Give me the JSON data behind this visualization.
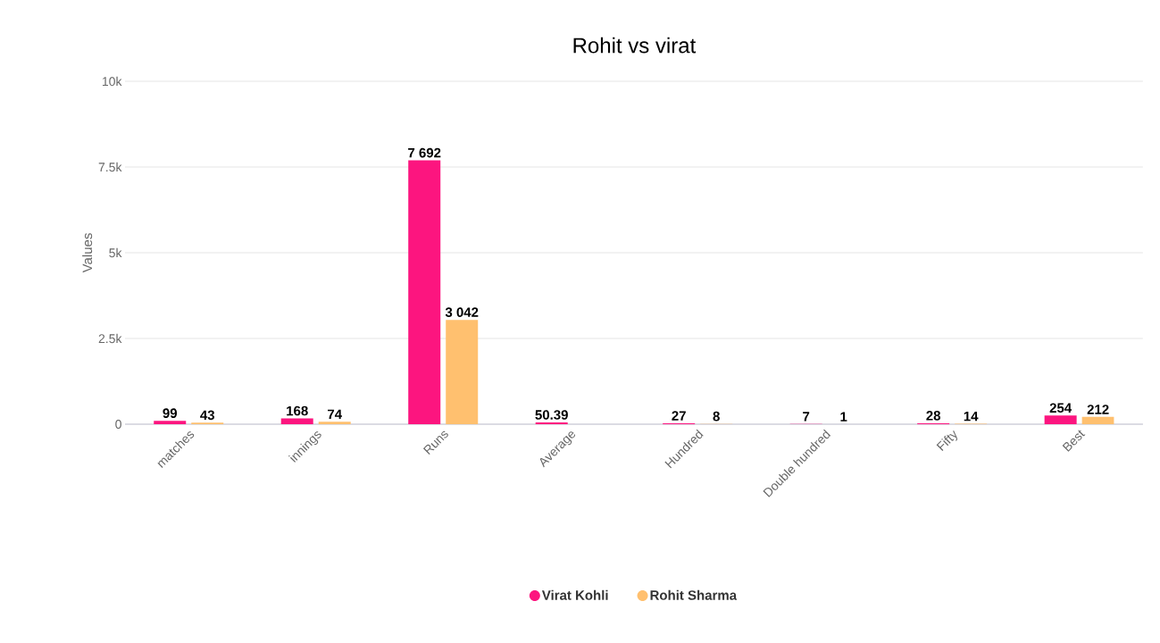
{
  "chart_data": {
    "type": "bar",
    "title": "Rohit vs virat",
    "ylabel": "Values",
    "categories": [
      "matches",
      "innings",
      "Runs",
      "Average",
      "Hundred",
      "Double hundred",
      "Fifty",
      "Best"
    ],
    "series": [
      {
        "name": "Virat Kohli",
        "color": "#fc157f",
        "values": [
          99,
          168,
          7692,
          50.39,
          27,
          7,
          28,
          254
        ],
        "value_labels": [
          "99",
          "168",
          "7 692",
          "50.39",
          "27",
          "7",
          "28",
          "254"
        ]
      },
      {
        "name": "Rohit Sharma",
        "color": "#ffc06f",
        "values": [
          43,
          74,
          3042,
          null,
          8,
          1,
          14,
          212
        ],
        "value_labels": [
          "43",
          "74",
          "3 042",
          null,
          "8",
          "1",
          "14",
          "212"
        ]
      }
    ],
    "ylim": [
      0,
      10000
    ],
    "yticks": [
      0,
      {
        "value": 2500,
        "label": "2.5k"
      },
      {
        "value": 5000,
        "label": "5k"
      },
      {
        "value": 7500,
        "label": "7.5k"
      },
      {
        "value": 10000,
        "label": "10k"
      }
    ],
    "grid": "y",
    "legend": "bottom"
  }
}
